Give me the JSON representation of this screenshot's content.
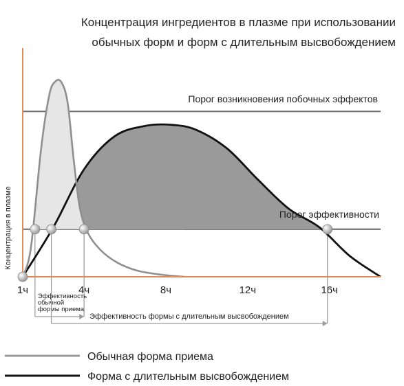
{
  "chart_data": {
    "type": "line",
    "title_lines": [
      "Концентрация ингредиентов в плазме при использовании",
      "обычных форм и форм с длительным высвобождением"
    ],
    "ylabel": "Концентрация в плазме",
    "xlabel": "",
    "x_ticks": [
      {
        "x": 1,
        "label": "1ч"
      },
      {
        "x": 4,
        "label": "4ч"
      },
      {
        "x": 8,
        "label": "8ч"
      },
      {
        "x": 12,
        "label": "12ч"
      },
      {
        "x": 16,
        "label": "16ч"
      }
    ],
    "xlim": [
      1,
      18.5
    ],
    "ylim": [
      0,
      1
    ],
    "thresholds": [
      {
        "name": "Порог возникновения побочных эффектов",
        "y": 0.8
      },
      {
        "name": "Порог эффективности",
        "y": 0.23
      }
    ],
    "series": [
      {
        "name": "Обычная форма приема",
        "color": "#8f8f8f",
        "fill": "#e6e6e6",
        "x": [
          1,
          1.4,
          1.9,
          2.3,
          2.6,
          2.9,
          3.2,
          3.5,
          3.8,
          4.2,
          4.8,
          5.6,
          6.6,
          7.8,
          8.9
        ],
        "y": [
          0,
          0.14,
          0.62,
          0.88,
          0.945,
          0.94,
          0.84,
          0.56,
          0.33,
          0.21,
          0.13,
          0.07,
          0.03,
          0.01,
          0
        ]
      },
      {
        "name": "Форма с длительным высвобождением",
        "color": "#111111",
        "fill": "#9a9a9a",
        "x": [
          1,
          2.5,
          4,
          5.5,
          7,
          8.3,
          9.5,
          11,
          12.5,
          14,
          15.5,
          17,
          18.5
        ],
        "y": [
          0,
          0.24,
          0.52,
          0.68,
          0.73,
          0.735,
          0.71,
          0.62,
          0.47,
          0.33,
          0.24,
          0.1,
          0
        ]
      }
    ],
    "markers": [
      {
        "x": 1,
        "y": 0
      },
      {
        "x": 1.6,
        "y": 0.23
      },
      {
        "x": 2.4,
        "y": 0.23
      },
      {
        "x": 4,
        "y": 0.23
      },
      {
        "x": 15.9,
        "y": 0.23
      }
    ],
    "spans": [
      {
        "label_lines": [
          "Эффективность",
          "обычной",
          "формы приема"
        ],
        "from": 1.6,
        "to": 4
      },
      {
        "label_lines": [
          "Эффективность формы с длительным высвобождением"
        ],
        "from": 2.4,
        "to": 15.9
      }
    ],
    "legend_position": "bottom-left"
  }
}
